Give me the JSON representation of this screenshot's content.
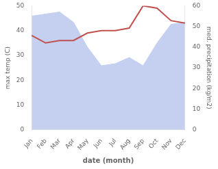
{
  "chart_data": {
    "type": "line",
    "xlabel": "date (month)",
    "ylabel": "max temp (C)",
    "y2label": "med. precipitation (kg/m2)",
    "categories": [
      "Jan",
      "Feb",
      "Mar",
      "Apr",
      "May",
      "Jun",
      "Jul",
      "Aug",
      "Sep",
      "Oct",
      "Nov",
      "Dec"
    ],
    "series": [
      {
        "type": "area",
        "color": "#c5cff0",
        "axis": "y2",
        "values": [
          55,
          56,
          57,
          52,
          40,
          31,
          32,
          35,
          31,
          42,
          51,
          52
        ]
      },
      {
        "type": "line",
        "color": "#c0504d",
        "values": [
          38,
          35,
          36,
          36,
          39,
          40,
          40,
          41,
          50,
          49,
          44,
          43
        ]
      }
    ],
    "ylim": [
      0,
      50
    ],
    "yticks": [
      0,
      10,
      20,
      30,
      40,
      50
    ],
    "y2lim": [
      0,
      60
    ],
    "y2ticks": [
      0,
      10,
      20,
      30,
      40,
      50,
      60
    ],
    "grid": false
  }
}
